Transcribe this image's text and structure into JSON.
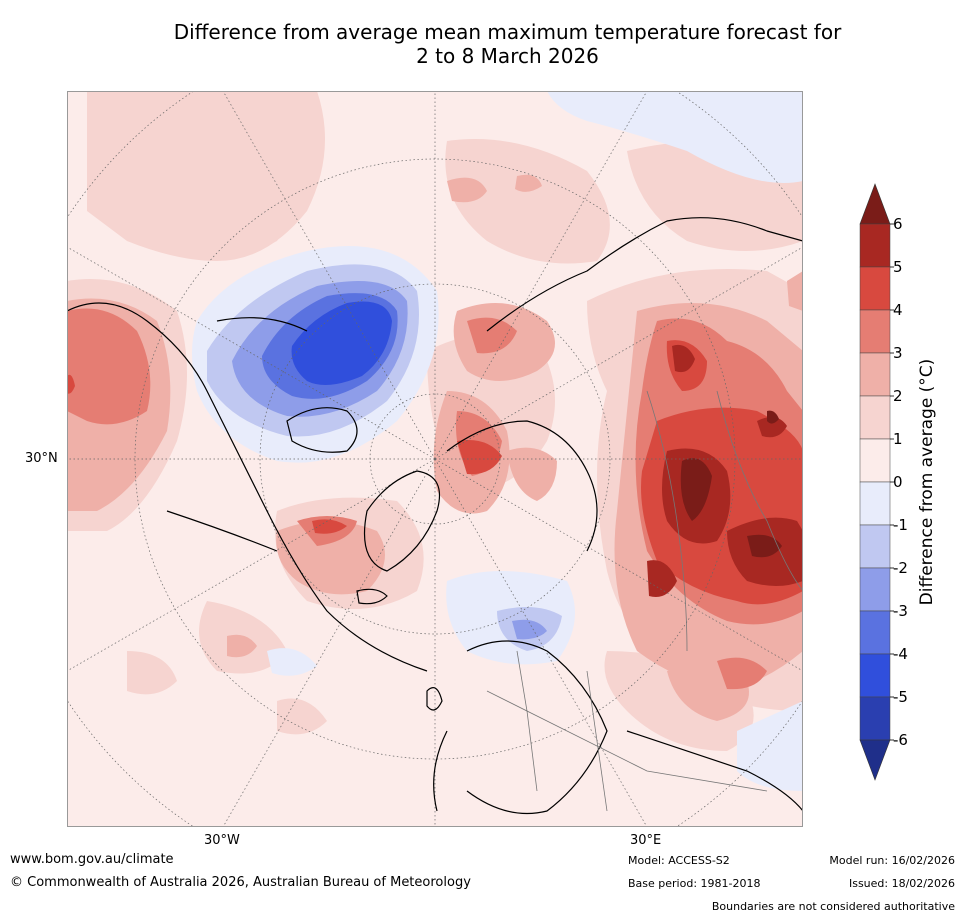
{
  "title_line1": "Difference from average mean maximum temperature forecast for",
  "title_line2": "2 to 8 March 2026",
  "map": {
    "projection": "north-polar-stereographic",
    "lat_labels": [
      "30°N"
    ],
    "lon_labels": [
      "30°W",
      "30°E"
    ]
  },
  "colorbar": {
    "label": "Difference from average (°C)",
    "ticks": [
      "6",
      "5",
      "4",
      "3",
      "2",
      "1",
      "0",
      "-1",
      "-2",
      "-3",
      "-4",
      "-5",
      "-6"
    ],
    "over_color": "#7a1c18",
    "under_color": "#1f2f8a",
    "bands": [
      {
        "range": "5 to 6",
        "color": "#a82822"
      },
      {
        "range": "4 to 5",
        "color": "#d8493f"
      },
      {
        "range": "3 to 4",
        "color": "#e57d73"
      },
      {
        "range": "2 to 3",
        "color": "#efb0a8"
      },
      {
        "range": "1 to 2",
        "color": "#f6d4d0"
      },
      {
        "range": "0 to 1",
        "color": "#fcecea"
      },
      {
        "range": "-1 to 0",
        "color": "#e8ecfb"
      },
      {
        "range": "-2 to -1",
        "color": "#c0c8f1"
      },
      {
        "range": "-3 to -2",
        "color": "#8e9de9"
      },
      {
        "range": "-4 to -3",
        "color": "#5a72e0"
      },
      {
        "range": "-5 to -4",
        "color": "#304fdc"
      },
      {
        "range": "-6 to -5",
        "color": "#2a3fb0"
      }
    ]
  },
  "footer": {
    "website": "www.bom.gov.au/climate",
    "copyright": "© Commonwealth of Australia 2026, Australian Bureau of Meteorology",
    "model": "Model: ACCESS-S2",
    "base_period": "Base period: 1981-2018",
    "model_run": "Model run: 16/02/2026",
    "issued": "Issued: 18/02/2026",
    "disclaimer": "Boundaries are not considered authoritative"
  }
}
